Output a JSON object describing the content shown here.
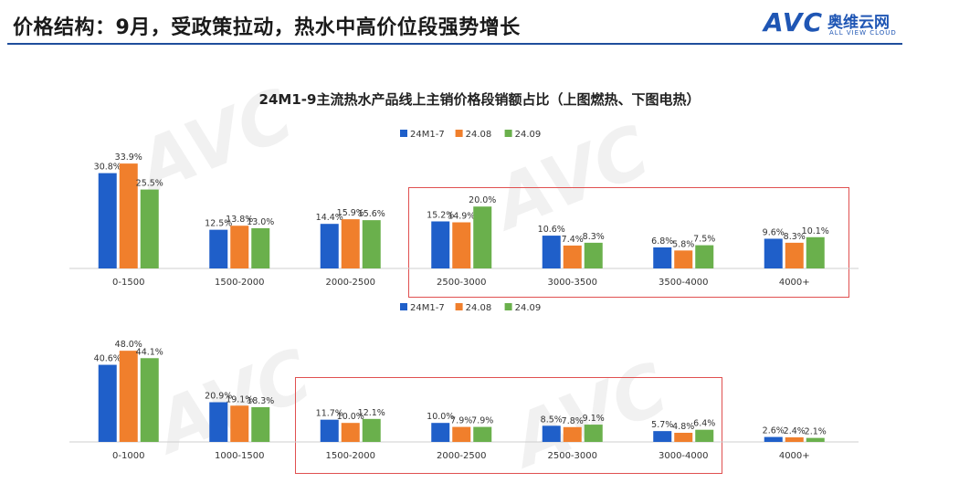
{
  "header": {
    "title": "价格结构：9月，受政策拉动，热水中高价位段强势增长",
    "logo_mark": "AVC",
    "logo_cn": "奥维云网",
    "logo_en": "ALL VIEW CLOUD"
  },
  "colors": {
    "series": [
      "#1f5fc9",
      "#f07f2c",
      "#6ab04c"
    ],
    "title_rule": "#1f4e9c",
    "highlight_box": "#e05050"
  },
  "chart_data": [
    {
      "type": "bar",
      "title": "24M1-9主流热水产品线上主销价格段销额占比（上图燃热、下图电热）",
      "legend_position": "top-center",
      "categories": [
        "0-1500",
        "1500-2000",
        "2000-2500",
        "2500-3000",
        "3000-3500",
        "3500-4000",
        "4000+"
      ],
      "series": [
        {
          "name": "24M1-7",
          "values": [
            30.8,
            12.5,
            14.4,
            15.2,
            10.6,
            6.8,
            9.6
          ],
          "labels": [
            "30.8%",
            "12.5%",
            "14.4%",
            "15.2%",
            "10.6%",
            "6.8%",
            "9.6%"
          ]
        },
        {
          "name": "24.08",
          "values": [
            33.9,
            13.8,
            15.9,
            14.9,
            7.4,
            5.8,
            8.3
          ],
          "labels": [
            "33.9%",
            "13.8%",
            "15.9%",
            "14.9%",
            "7.4%",
            "5.8%",
            "8.3%"
          ]
        },
        {
          "name": "24.09",
          "values": [
            25.5,
            13.0,
            15.6,
            20.0,
            8.3,
            7.5,
            10.1
          ],
          "labels": [
            "25.5%",
            "13.0%",
            "15.6%",
            "20.0%",
            "8.3%",
            "7.5%",
            "10.1%"
          ]
        }
      ],
      "ylim": [
        0,
        36
      ],
      "grid": false,
      "highlight": {
        "from": "2500-3000",
        "to": "4000+"
      }
    },
    {
      "type": "bar",
      "legend_position": "top-center",
      "categories": [
        "0-1000",
        "1000-1500",
        "1500-2000",
        "2000-2500",
        "2500-3000",
        "3000-4000",
        "4000+"
      ],
      "series": [
        {
          "name": "24M1-7",
          "values": [
            40.6,
            20.9,
            11.7,
            10.0,
            8.5,
            5.7,
            2.6
          ],
          "labels": [
            "40.6%",
            "20.9%",
            "11.7%",
            "10.0%",
            "8.5%",
            "5.7%",
            "2.6%"
          ]
        },
        {
          "name": "24.08",
          "values": [
            48.0,
            19.1,
            10.0,
            7.9,
            7.8,
            4.8,
            2.4
          ],
          "labels": [
            "48.0%",
            "19.1%",
            "10.0%",
            "7.9%",
            "7.8%",
            "4.8%",
            "2.4%"
          ]
        },
        {
          "name": "24.09",
          "values": [
            44.1,
            18.3,
            12.1,
            7.9,
            9.1,
            6.4,
            2.1
          ],
          "labels": [
            "44.1%",
            "18.3%",
            "12.1%",
            "7.9%",
            "9.1%",
            "6.4%",
            "2.1%"
          ]
        }
      ],
      "ylim": [
        0,
        50
      ],
      "grid": false,
      "highlight": {
        "from": "1500-2000",
        "to": "3000-4000"
      }
    }
  ]
}
